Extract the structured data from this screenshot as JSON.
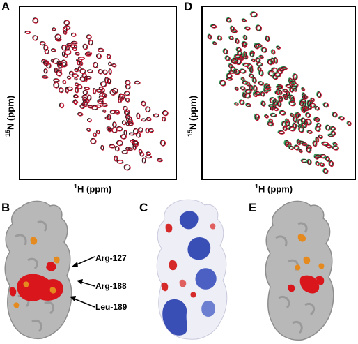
{
  "panels": {
    "A": {
      "letter": "A",
      "xlabel_sup": "1",
      "xlabel_rest": "H (ppm)",
      "ylabel_sup": "15",
      "ylabel_rest": "N (ppm)"
    },
    "D": {
      "letter": "D",
      "xlabel_sup": "1",
      "xlabel_rest": "H (ppm)",
      "ylabel_sup": "15",
      "ylabel_rest": "N (ppm)"
    },
    "B": {
      "letter": "B",
      "residues": [
        "Arg-127",
        "Arg-188",
        "Leu-189"
      ]
    },
    "C": {
      "letter": "C"
    },
    "E": {
      "letter": "E"
    }
  },
  "colors": {
    "surface_gray": "#b8b8b8",
    "surface_shadow": "#8e8e8e",
    "highlight_red": "#d9161c",
    "highlight_orange": "#e58a1f",
    "electro_blue": "#3a4fb5",
    "electro_red": "#d62a2a",
    "peak_red": "#c8102e",
    "peak_black": "#1a1a1a",
    "peak_green": "#3aa860"
  }
}
